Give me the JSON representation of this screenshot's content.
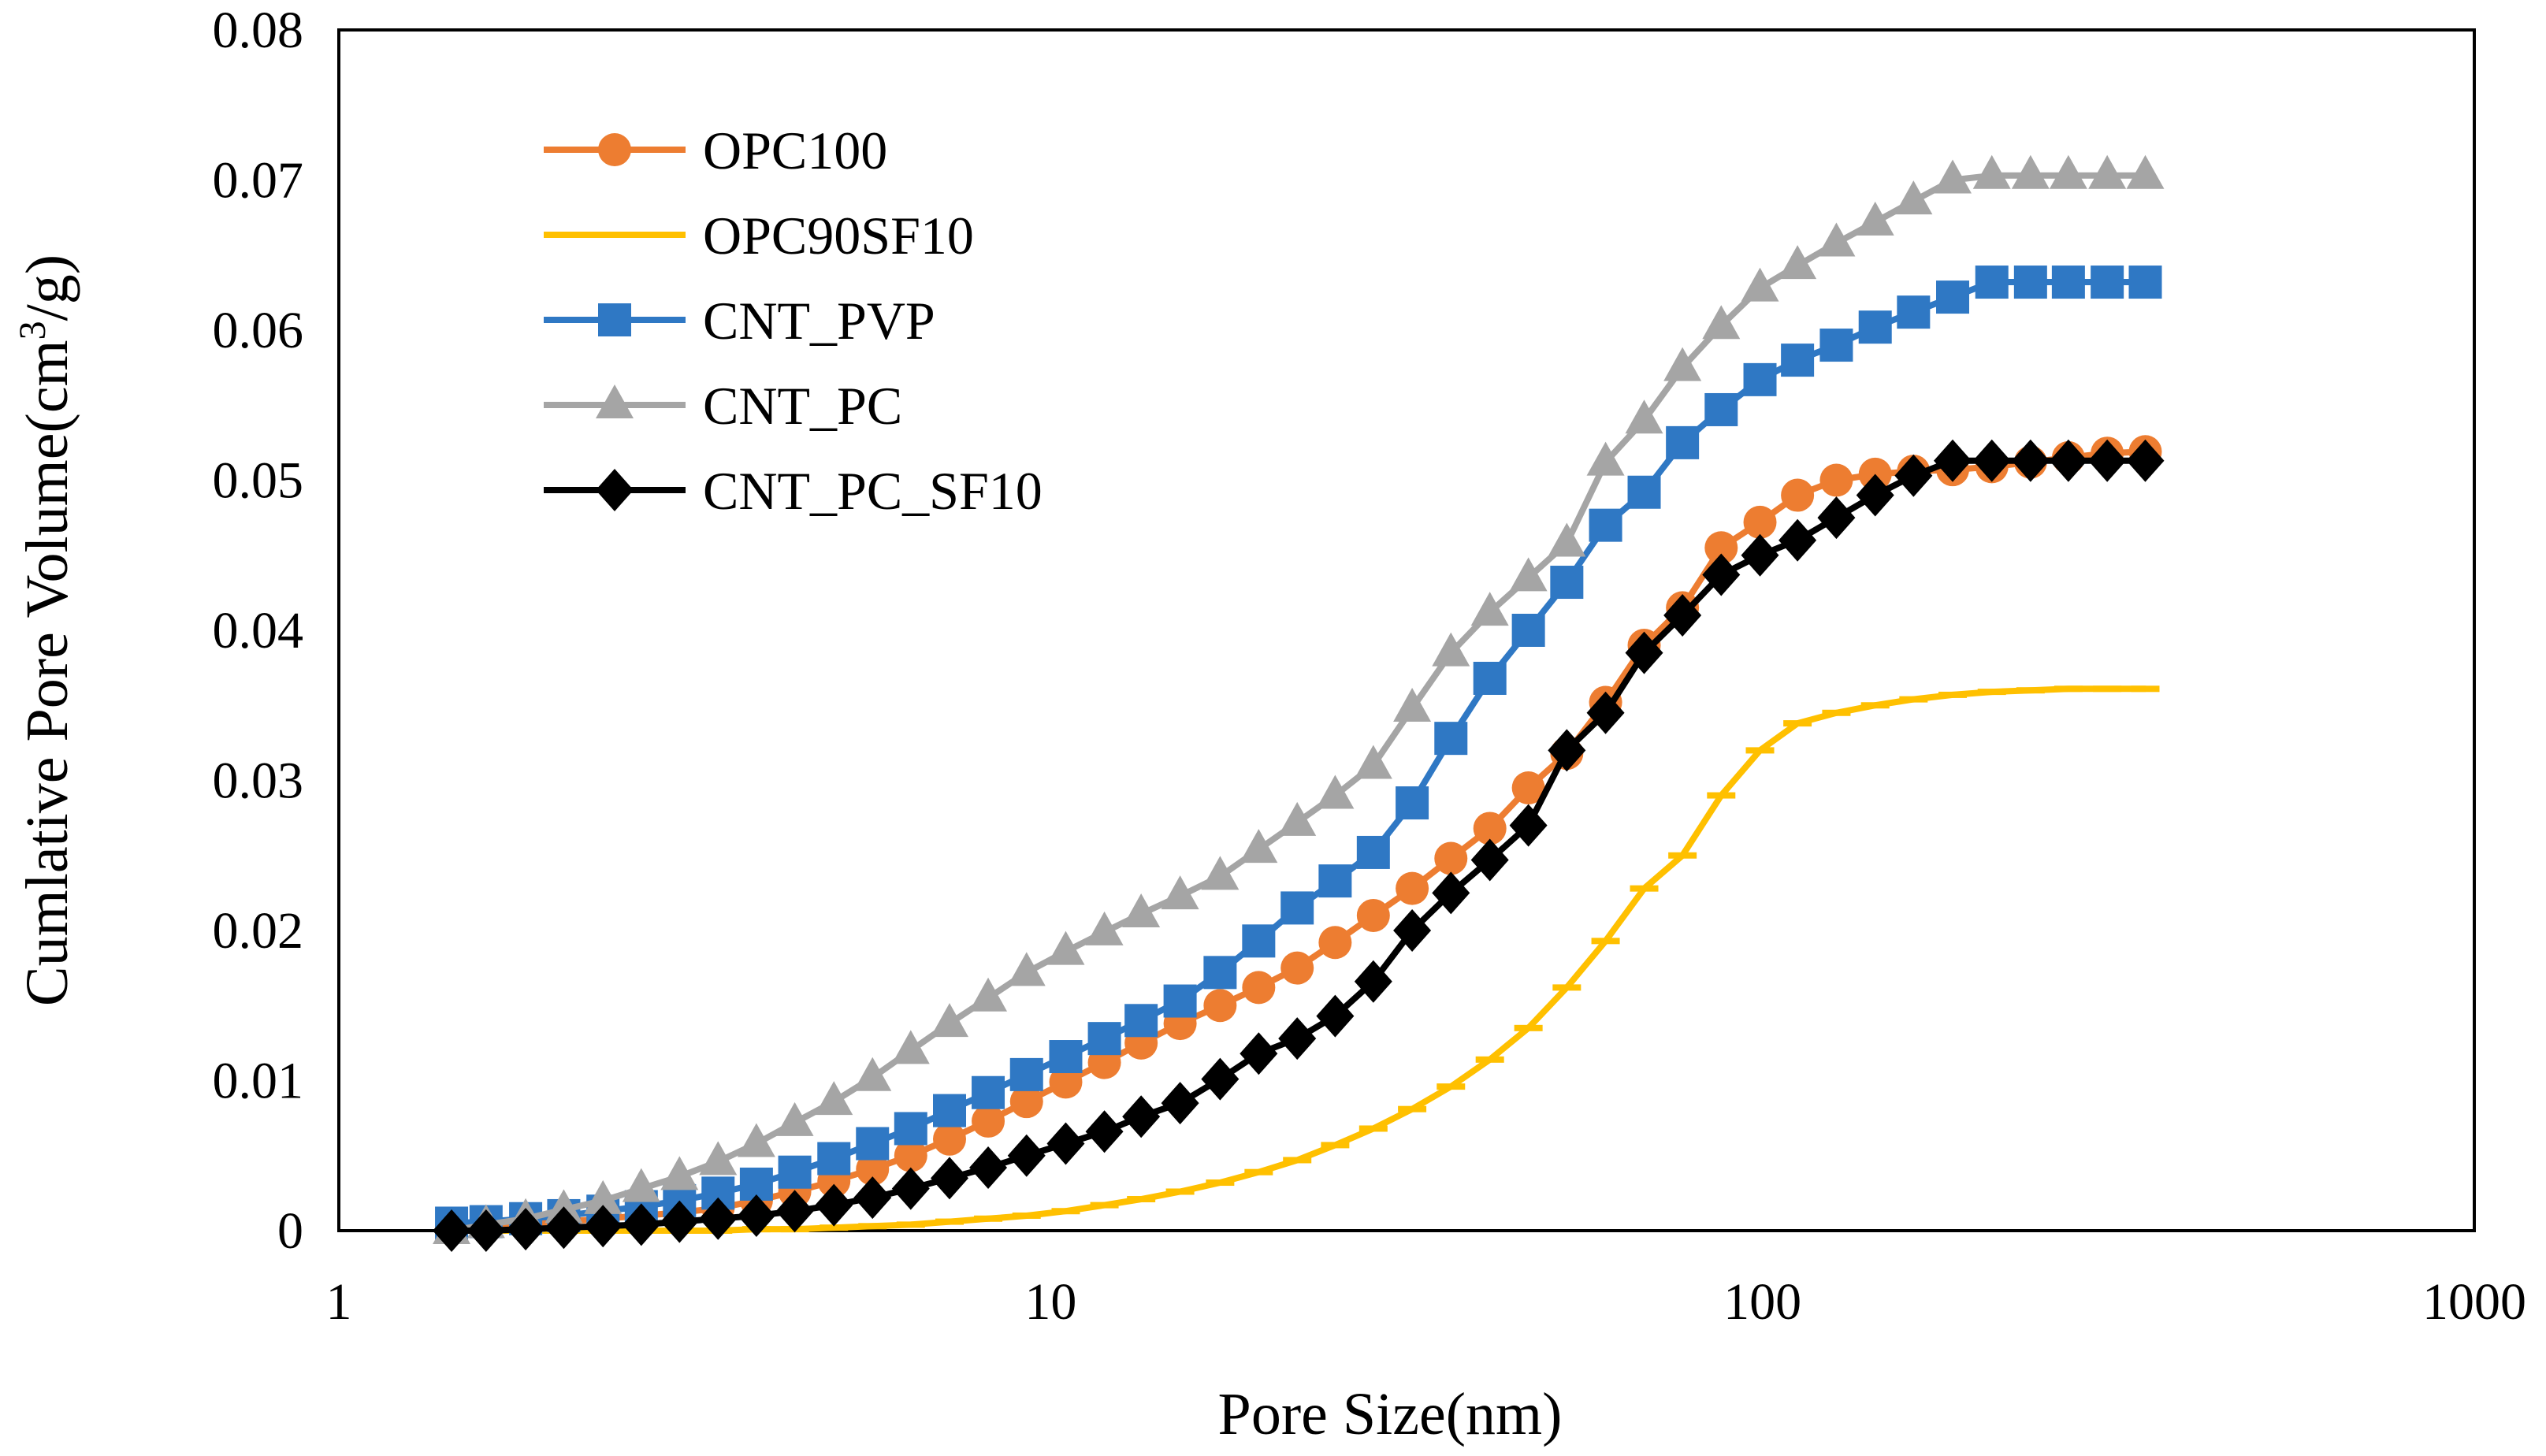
{
  "chart_data": {
    "type": "line",
    "title": "",
    "xlabel": "Pore Size(nm)",
    "ylabel_main": "Cumlative Pore Volume(cm",
    "ylabel_sup": "3",
    "ylabel_tail": "/g)",
    "x_scale": "log",
    "xlim": [
      1,
      1000
    ],
    "ylim": [
      0,
      0.08
    ],
    "x_ticks": [
      {
        "value": 1,
        "label": "1"
      },
      {
        "value": 10,
        "label": "10"
      },
      {
        "value": 100,
        "label": "100"
      },
      {
        "value": 1000,
        "label": "1000"
      }
    ],
    "y_ticks": [
      {
        "value": 0,
        "label": "0"
      },
      {
        "value": 0.01,
        "label": "0.01"
      },
      {
        "value": 0.02,
        "label": "0.02"
      },
      {
        "value": 0.03,
        "label": "0.03"
      },
      {
        "value": 0.04,
        "label": "0.04"
      },
      {
        "value": 0.05,
        "label": "0.05"
      },
      {
        "value": 0.06,
        "label": "0.06"
      },
      {
        "value": 0.07,
        "label": "0.07"
      },
      {
        "value": 0.08,
        "label": "0.08"
      }
    ],
    "legend_position": "top-left",
    "x": [
      1.44,
      1.61,
      1.83,
      2.07,
      2.35,
      2.66,
      3.01,
      3.41,
      3.86,
      4.37,
      4.96,
      5.62,
      6.36,
      7.21,
      8.17,
      9.25,
      10.5,
      11.9,
      13.4,
      15.2,
      17.3,
      19.6,
      22.2,
      25.1,
      28.4,
      32.2,
      36.5,
      41.4,
      46.9,
      53.1,
      60.2,
      68.2,
      77.2,
      87.5,
      99.2,
      112,
      127,
      144,
      163,
      185,
      210,
      238,
      269,
      305,
      345
    ],
    "series": [
      {
        "name": "OPC100",
        "color": "#ED7D31",
        "marker": "circle",
        "values": [
          0.0003,
          0.0004,
          0.0005,
          0.0006,
          0.0008,
          0.001,
          0.0012,
          0.0015,
          0.002,
          0.0026,
          0.0033,
          0.0041,
          0.005,
          0.0061,
          0.0073,
          0.0086,
          0.0099,
          0.0112,
          0.0125,
          0.0138,
          0.015,
          0.0162,
          0.0175,
          0.0192,
          0.021,
          0.0228,
          0.0248,
          0.0268,
          0.0295,
          0.0318,
          0.0352,
          0.039,
          0.0415,
          0.0455,
          0.0472,
          0.049,
          0.05,
          0.0504,
          0.0506,
          0.0507,
          0.0509,
          0.0512,
          0.0515,
          0.0518,
          0.0519
        ]
      },
      {
        "name": "OPC90SF10",
        "color": "#FFC000",
        "marker": "dash",
        "values": [
          0.0,
          0.0,
          0.0,
          0.0,
          0.0,
          0.0,
          0.0,
          0.0,
          0.0001,
          0.0001,
          0.0002,
          0.0003,
          0.0004,
          0.0006,
          0.0008,
          0.001,
          0.0013,
          0.0017,
          0.0021,
          0.0026,
          0.0032,
          0.0039,
          0.0047,
          0.0057,
          0.0068,
          0.0081,
          0.0096,
          0.0114,
          0.0135,
          0.0162,
          0.0193,
          0.0228,
          0.025,
          0.029,
          0.032,
          0.0338,
          0.0345,
          0.035,
          0.0354,
          0.0357,
          0.0359,
          0.036,
          0.0361,
          0.0361,
          0.0361
        ]
      },
      {
        "name": "CNT_PVP",
        "color": "#2F78C4",
        "marker": "square",
        "values": [
          0.0005,
          0.0006,
          0.0008,
          0.001,
          0.0013,
          0.0016,
          0.002,
          0.0025,
          0.0031,
          0.0039,
          0.0048,
          0.0058,
          0.0068,
          0.008,
          0.0092,
          0.0104,
          0.0116,
          0.0128,
          0.014,
          0.0153,
          0.0172,
          0.0193,
          0.0215,
          0.0233,
          0.0252,
          0.0285,
          0.0328,
          0.0368,
          0.04,
          0.0432,
          0.047,
          0.0492,
          0.0525,
          0.0547,
          0.0567,
          0.058,
          0.059,
          0.0602,
          0.0612,
          0.0622,
          0.0632,
          0.0632,
          0.0632,
          0.0632,
          0.0632
        ]
      },
      {
        "name": "CNT_PC",
        "color": "#A5A5A5",
        "marker": "triangle",
        "values": [
          0.0,
          0.0004,
          0.0008,
          0.0014,
          0.002,
          0.0028,
          0.0036,
          0.0046,
          0.0058,
          0.0072,
          0.0086,
          0.0102,
          0.012,
          0.0138,
          0.0155,
          0.0172,
          0.0186,
          0.0199,
          0.0211,
          0.0223,
          0.0236,
          0.0254,
          0.0272,
          0.029,
          0.031,
          0.0348,
          0.0385,
          0.0412,
          0.0435,
          0.0458,
          0.0512,
          0.054,
          0.0575,
          0.0603,
          0.0628,
          0.0643,
          0.0658,
          0.0672,
          0.0686,
          0.07,
          0.0703,
          0.0703,
          0.0703,
          0.0703,
          0.0703
        ]
      },
      {
        "name": "CNT_PC_SF10",
        "color": "#000000",
        "marker": "diamond",
        "values": [
          0.0,
          0.0,
          0.0001,
          0.0002,
          0.0003,
          0.0004,
          0.0006,
          0.0008,
          0.001,
          0.0013,
          0.0017,
          0.0022,
          0.0028,
          0.0035,
          0.0042,
          0.005,
          0.0058,
          0.0066,
          0.0076,
          0.0085,
          0.0101,
          0.0118,
          0.0128,
          0.0143,
          0.0166,
          0.02,
          0.0225,
          0.0247,
          0.027,
          0.032,
          0.0345,
          0.0385,
          0.041,
          0.0437,
          0.045,
          0.046,
          0.0475,
          0.049,
          0.0503,
          0.0513,
          0.0513,
          0.0513,
          0.0513,
          0.0513,
          0.0513
        ]
      }
    ]
  }
}
